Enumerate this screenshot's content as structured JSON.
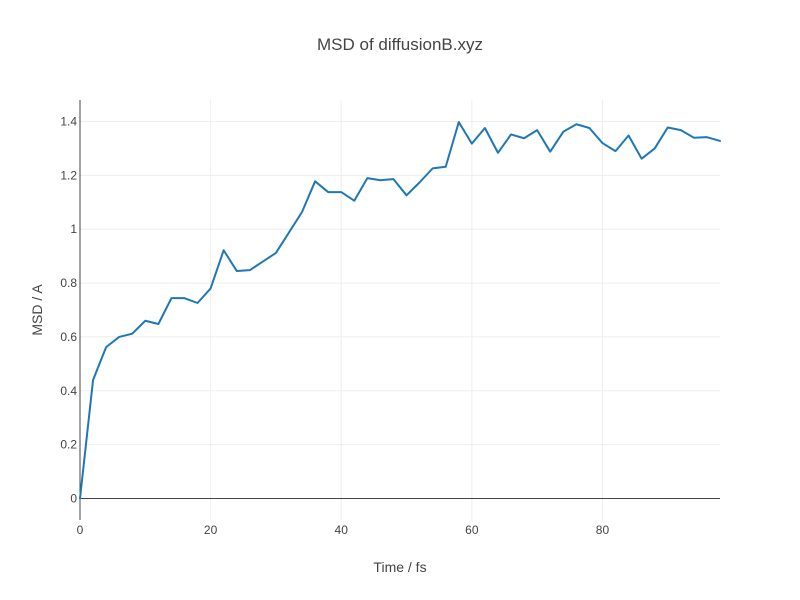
{
  "chart_data": {
    "type": "line",
    "title": "MSD of diffusionB.xyz",
    "xlabel": "Time / fs",
    "ylabel": "MSD / A",
    "xlim": [
      0,
      98
    ],
    "ylim": [
      -0.08,
      1.48
    ],
    "xticks": [
      0,
      20,
      40,
      60,
      80
    ],
    "xtick_labels": [
      "0",
      "20",
      "40",
      "60",
      "80"
    ],
    "yticks": [
      0,
      0.2,
      0.4,
      0.6,
      0.8,
      1,
      1.2,
      1.4
    ],
    "ytick_labels": [
      "0",
      "0.2",
      "0.4",
      "0.6",
      "0.8",
      "1",
      "1.2",
      "1.4"
    ],
    "grid": true,
    "legend": "none",
    "line_color": "#1f77b4",
    "series": [
      {
        "x": [
          0,
          2,
          4,
          6,
          8,
          10,
          12,
          14,
          16,
          18,
          20,
          22,
          24,
          26,
          28,
          30,
          32,
          34,
          36,
          38,
          40,
          42,
          44,
          46,
          48,
          50,
          52,
          54,
          56,
          58,
          60,
          62,
          64,
          66,
          68,
          70,
          72,
          74,
          76,
          78,
          80,
          82,
          84,
          86,
          88,
          90,
          92,
          94,
          96,
          98
        ],
        "values": [
          0,
          0.44,
          0.562,
          0.6,
          0.612,
          0.66,
          0.648,
          0.744,
          0.744,
          0.726,
          0.78,
          0.922,
          0.845,
          0.848,
          0.88,
          0.912,
          0.988,
          1.064,
          1.178,
          1.138,
          1.138,
          1.106,
          1.19,
          1.182,
          1.186,
          1.126,
          1.174,
          1.226,
          1.232,
          1.398,
          1.318,
          1.376,
          1.284,
          1.352,
          1.338,
          1.368,
          1.288,
          1.362,
          1.39,
          1.376,
          1.32,
          1.29,
          1.348,
          1.262,
          1.3,
          1.378,
          1.368,
          1.34,
          1.342,
          1.328
        ]
      }
    ]
  }
}
